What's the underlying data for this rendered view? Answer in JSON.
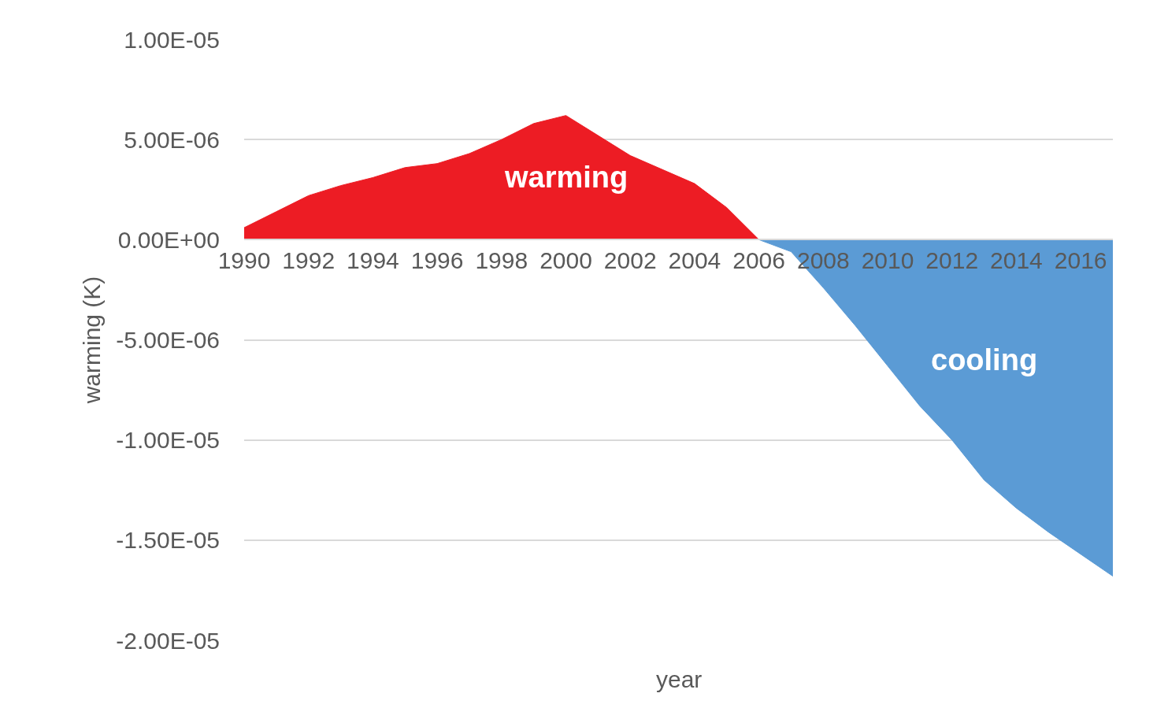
{
  "chart_data": {
    "type": "area",
    "xlabel": "year",
    "ylabel": "warming (K)",
    "xlim": [
      1990,
      2017
    ],
    "xticks": [
      1990,
      1992,
      1994,
      1996,
      1998,
      2000,
      2002,
      2004,
      2006,
      2008,
      2010,
      2012,
      2014,
      2016
    ],
    "ylim": [
      -2e-05,
      1e-05
    ],
    "yticks": [
      {
        "value": 1e-05,
        "label": "1.00E-05"
      },
      {
        "value": 5e-06,
        "label": "5.00E-06"
      },
      {
        "value": 0,
        "label": "0.00E+00"
      },
      {
        "value": -5e-06,
        "label": "-5.00E-06"
      },
      {
        "value": -1e-05,
        "label": "-1.00E-05"
      },
      {
        "value": -1.5e-05,
        "label": "-1.50E-05"
      },
      {
        "value": -2e-05,
        "label": "-2.00E-05"
      }
    ],
    "grid": "y",
    "legend": false,
    "series": [
      {
        "name": "warming",
        "color": "#ed1c24",
        "x": [
          1990,
          1991,
          1992,
          1993,
          1994,
          1995,
          1996,
          1997,
          1998,
          1999,
          2000,
          2001,
          2002,
          2003,
          2004,
          2005,
          2006
        ],
        "values": [
          6e-07,
          1.4e-06,
          2.2e-06,
          2.7e-06,
          3.1e-06,
          3.6e-06,
          3.8e-06,
          4.3e-06,
          5e-06,
          5.8e-06,
          6.2e-06,
          5.2e-06,
          4.2e-06,
          3.5e-06,
          2.8e-06,
          1.6e-06,
          0
        ]
      },
      {
        "name": "cooling",
        "color": "#5b9bd5",
        "x": [
          2006,
          2007,
          2008,
          2009,
          2010,
          2011,
          2012,
          2013,
          2014,
          2015,
          2016,
          2017
        ],
        "values": [
          0,
          -6e-07,
          -2.4e-06,
          -4.3e-06,
          -6.3e-06,
          -8.3e-06,
          -1e-05,
          -1.2e-05,
          -1.34e-05,
          -1.46e-05,
          -1.57e-05,
          -1.68e-05
        ]
      }
    ]
  }
}
